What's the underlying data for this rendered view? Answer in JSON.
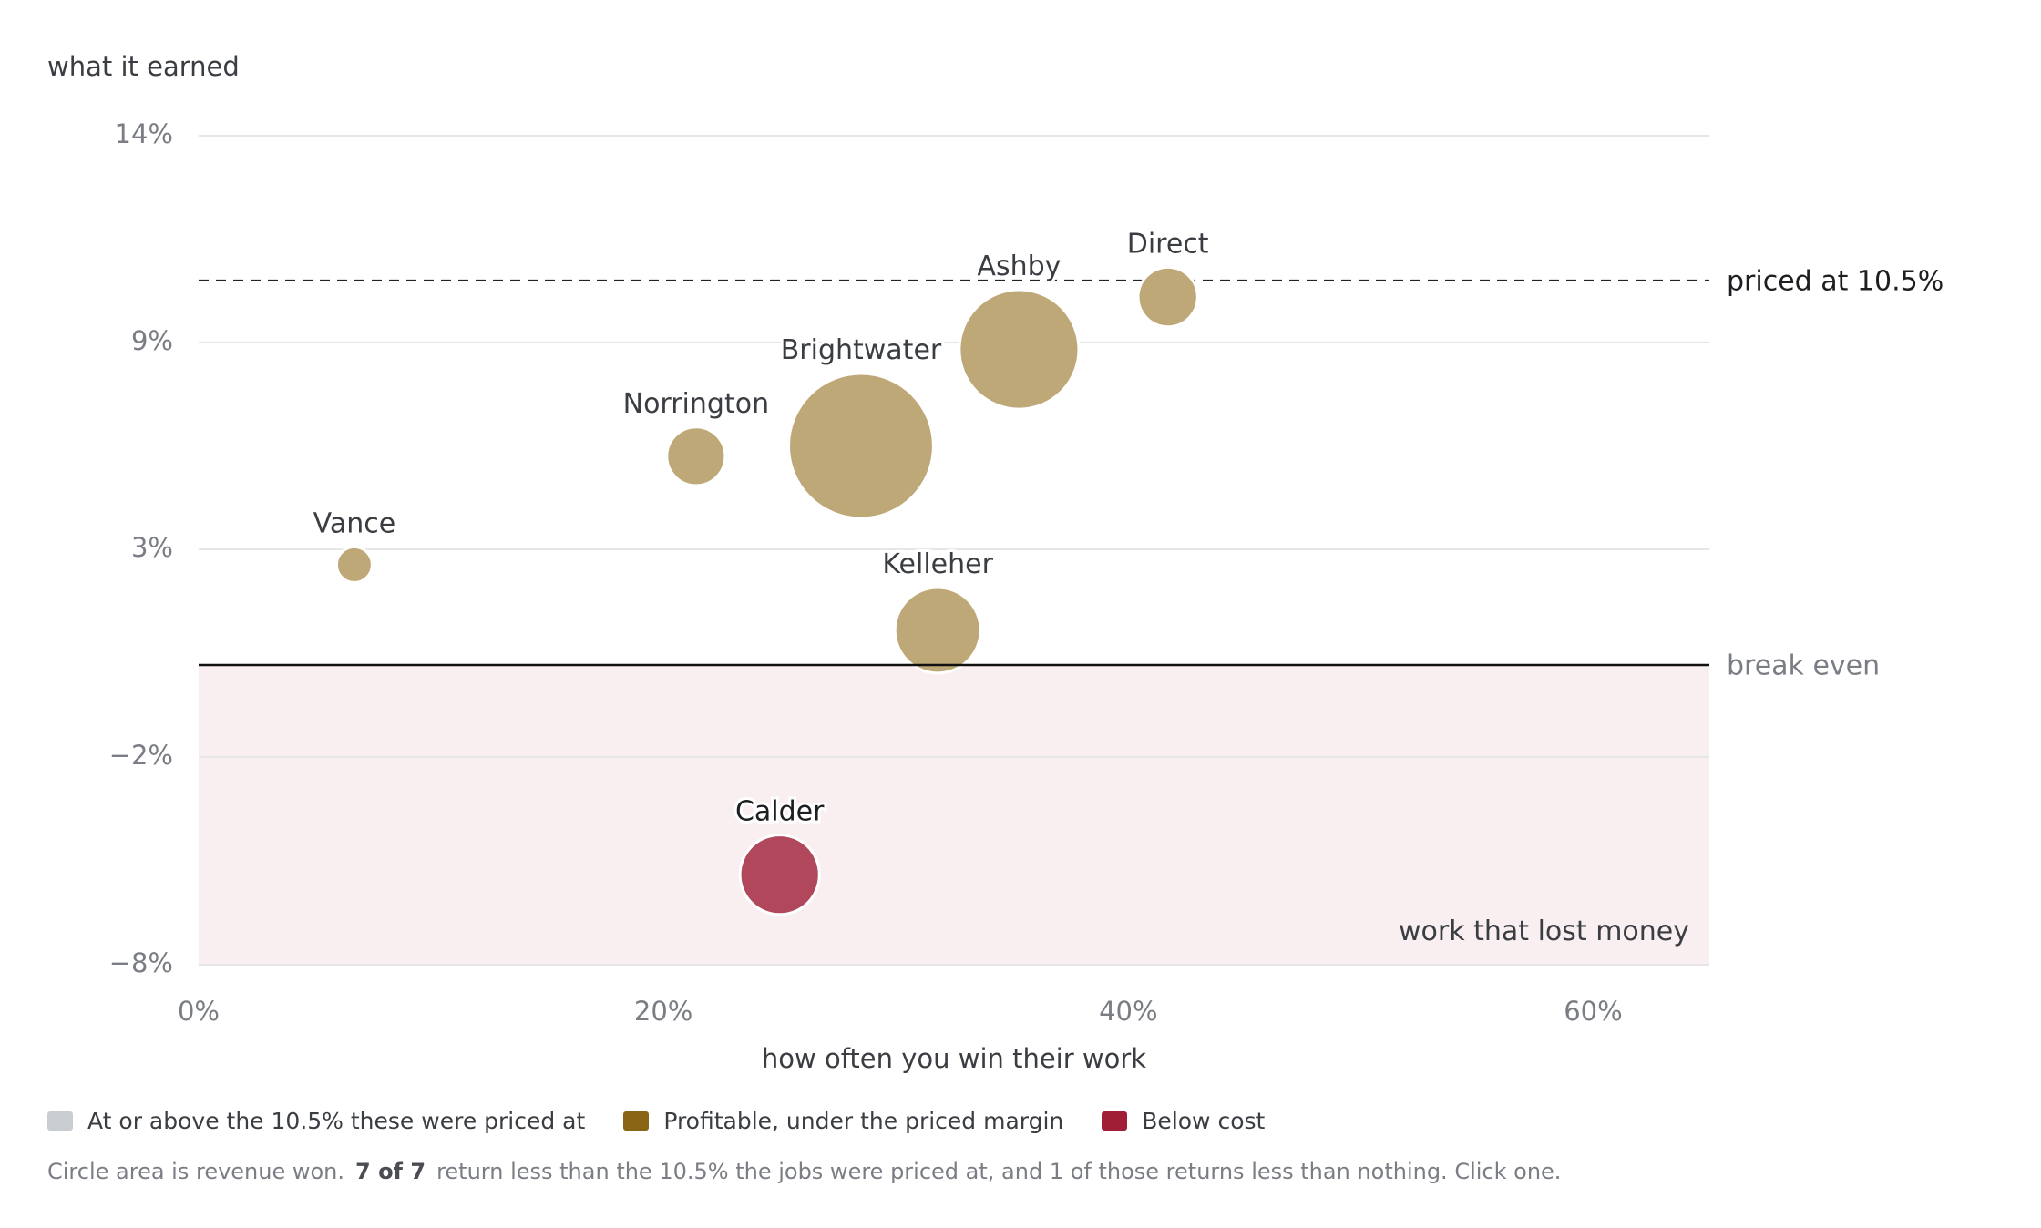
{
  "chart_data": {
    "type": "scatter",
    "subtype": "bubble",
    "ylabel": "what it earned",
    "xlabel": "how often you win their work",
    "xlim": [
      0,
      65
    ],
    "ylim": [
      -8,
      14
    ],
    "x_ticks": [
      0,
      20,
      40,
      60
    ],
    "x_tick_labels": [
      "0%",
      "20%",
      "40%",
      "60%"
    ],
    "y_ticks": [
      14,
      9,
      3,
      -2,
      -8
    ],
    "y_tick_labels": [
      "14%",
      "9%",
      "3%",
      "−2%",
      "−8%"
    ],
    "grid": true,
    "points": [
      {
        "name": "Vance",
        "x": 6.7,
        "y": 2.6,
        "size": 1,
        "category": "profitable"
      },
      {
        "name": "Norrington",
        "x": 21.4,
        "y": 5.7,
        "size": 2.7,
        "category": "profitable"
      },
      {
        "name": "Brightwater",
        "x": 28.5,
        "y": 6.0,
        "size": 16.6,
        "category": "profitable"
      },
      {
        "name": "Ashby",
        "x": 35.3,
        "y": 8.8,
        "size": 11.3,
        "category": "profitable"
      },
      {
        "name": "Direct",
        "x": 41.7,
        "y": 10.1,
        "size": 2.8,
        "category": "profitable"
      },
      {
        "name": "Kelleher",
        "x": 31.8,
        "y": 0.9,
        "size": 5.8,
        "category": "profitable"
      },
      {
        "name": "Calder",
        "x": 25.0,
        "y": -5.4,
        "size": 5.0,
        "category": "below_cost"
      }
    ],
    "reference_lines": [
      {
        "y": 10.5,
        "label": "priced at 10.5%",
        "style": "dashed"
      },
      {
        "y": 0,
        "label": "break even",
        "style": "solid"
      }
    ],
    "shaded_region": {
      "y_from": -8,
      "y_to": 0,
      "label": "work that lost money"
    },
    "legend": {
      "placement": "bottom-left",
      "items": [
        {
          "label": "At or above the 10.5% these were priced at",
          "color": "#c9ccd1"
        },
        {
          "label": "Profitable, under the priced margin",
          "color": "#8a6516"
        },
        {
          "label": "Below cost",
          "color": "#a01e36"
        }
      ]
    }
  },
  "colors": {
    "profitable": "#bea877",
    "below_cost": "#b0475a",
    "above_priced": "#c9ccd1",
    "loss_region": "#f9eff0",
    "grid": "#e6e6e6"
  },
  "footnote": {
    "before": "Circle area is revenue won.",
    "count": "7 of 7",
    "after": "return less than the 10.5% the jobs were priced at, and 1 of those returns less than nothing. Click one."
  }
}
